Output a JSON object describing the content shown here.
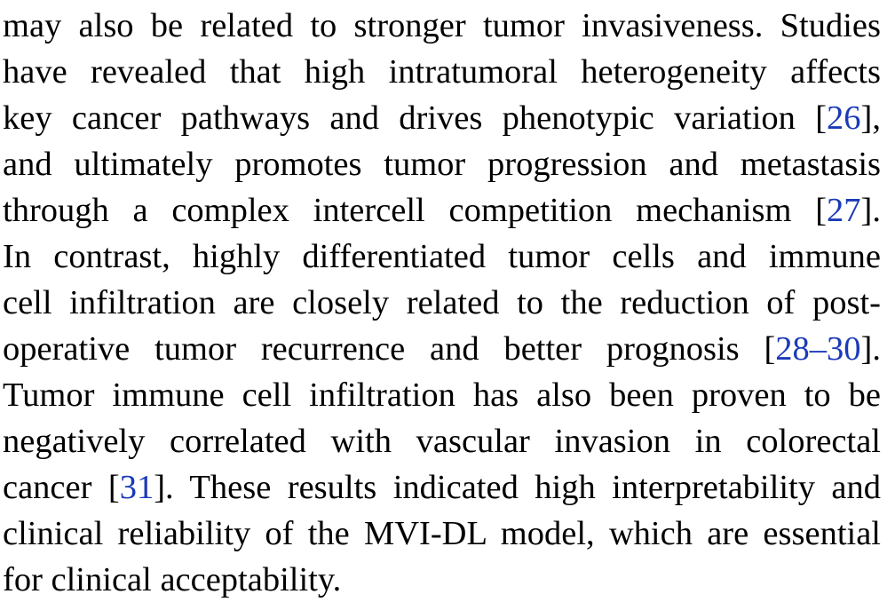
{
  "paragraph": {
    "lines": [
      [
        {
          "t": "may also be related to stronger tumor invasiveness. Studies"
        }
      ],
      [
        {
          "t": "have revealed that high intratumoral heterogeneity affects"
        }
      ],
      [
        {
          "t": "key cancer pathways and drives phenotypic variation ["
        },
        {
          "t": "26",
          "c": true
        },
        {
          "t": "],"
        }
      ],
      [
        {
          "t": "and ultimately promotes tumor progression and metastasis"
        }
      ],
      [
        {
          "t": "through a complex intercell competition mechanism ["
        },
        {
          "t": "27",
          "c": true
        },
        {
          "t": "]."
        }
      ],
      [
        {
          "t": "In contrast, highly differentiated tumor cells and immune"
        }
      ],
      [
        {
          "t": "cell infiltration are closely related to the reduction of post-"
        }
      ],
      [
        {
          "t": "operative tumor recurrence and better prognosis ["
        },
        {
          "t": "28–30",
          "c": true
        },
        {
          "t": "]."
        }
      ],
      [
        {
          "t": "Tumor immune cell infiltration has also been proven to be"
        }
      ],
      [
        {
          "t": "negatively correlated with vascular invasion in colorectal"
        }
      ],
      [
        {
          "t": "cancer ["
        },
        {
          "t": "31",
          "c": true
        },
        {
          "t": "]. These results indicated high interpretability and"
        }
      ],
      [
        {
          "t": "clinical reliability of the MVI-DL model, which are essential"
        }
      ],
      [
        {
          "t": "for clinical acceptability."
        }
      ]
    ]
  },
  "colors": {
    "text": "#000000",
    "citation": "#1a3ab8",
    "background": "#ffffff"
  }
}
